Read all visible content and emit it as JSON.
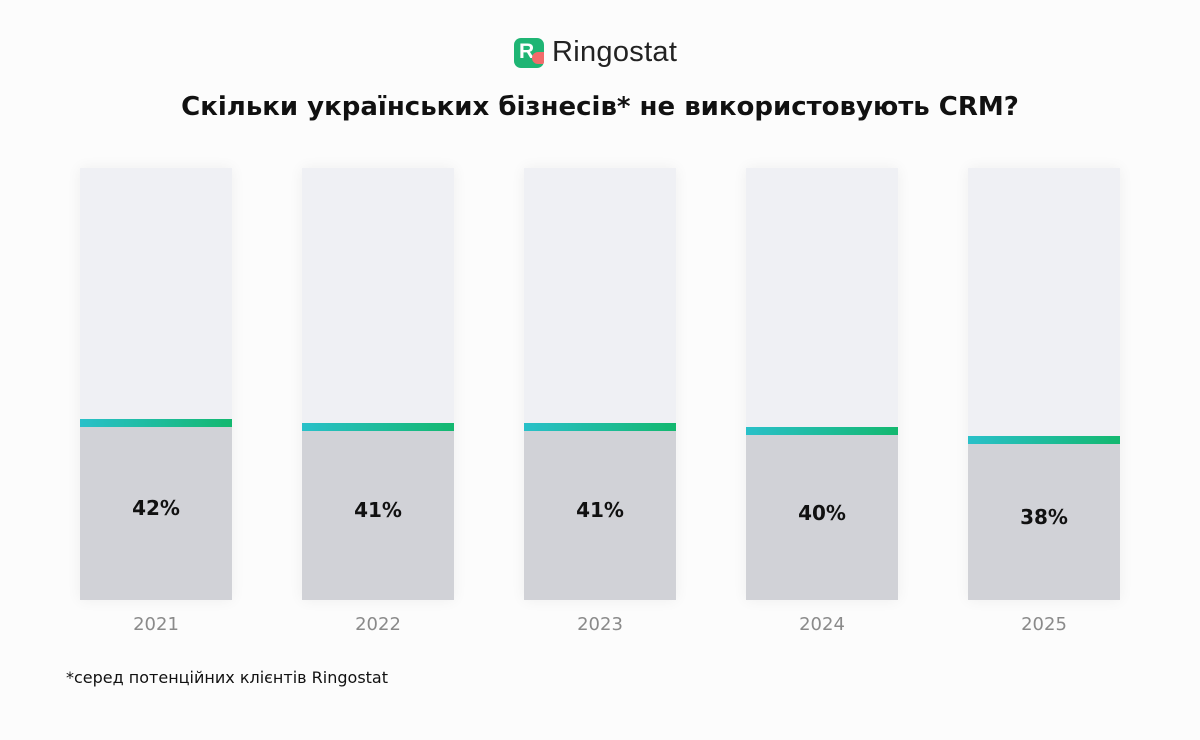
{
  "brand": {
    "name": "Ringostat",
    "colors": {
      "logo_green": "#1fb574",
      "logo_accent": "#f26b6b"
    }
  },
  "chart_data": {
    "type": "bar",
    "title": "Скільки українських бізнесів* не використовують CRM?",
    "categories": [
      "2021",
      "2022",
      "2023",
      "2024",
      "2025"
    ],
    "values": [
      42,
      41,
      41,
      40,
      38
    ],
    "labels": [
      "42%",
      "41%",
      "41%",
      "40%",
      "38%"
    ],
    "unit": "%",
    "ylim": [
      0,
      100
    ],
    "grid": false,
    "colors": {
      "track": "#eff0f4",
      "fill": "#d1d2d7",
      "stripe_start": "#29c0c9",
      "stripe_end": "#13b86f"
    }
  },
  "footnote": "*серед потенційних клієнтів Ringostat"
}
